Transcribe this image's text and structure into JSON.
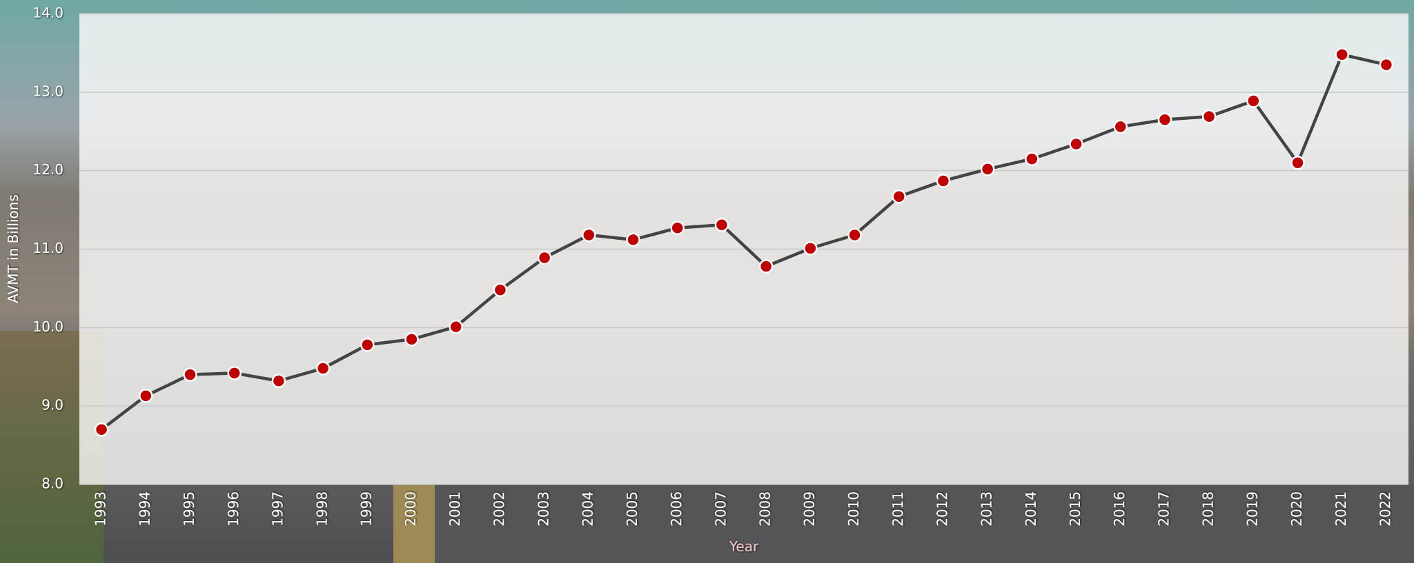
{
  "chart_data": {
    "type": "line",
    "x_label": "Year",
    "y_label": "AVMT in Billions",
    "categories": [
      "1993",
      "1994",
      "1995",
      "1996",
      "1997",
      "1998",
      "1999",
      "2000",
      "2001",
      "2002",
      "2003",
      "2004",
      "2005",
      "2006",
      "2007",
      "2008",
      "2009",
      "2010",
      "2011",
      "2012",
      "2013",
      "2014",
      "2015",
      "2016",
      "2017",
      "2018",
      "2019",
      "2020",
      "2021",
      "2022"
    ],
    "series": [
      {
        "name": "AVMT",
        "color": "#c00000",
        "line_color": "#444444",
        "values": [
          8.7,
          9.13,
          9.4,
          9.42,
          9.32,
          9.48,
          9.78,
          9.85,
          10.01,
          10.48,
          10.89,
          11.18,
          11.12,
          11.27,
          11.31,
          10.78,
          11.01,
          11.18,
          11.67,
          11.87,
          12.02,
          12.15,
          12.34,
          12.56,
          12.65,
          12.69,
          12.89,
          12.1,
          13.48,
          13.35
        ]
      }
    ],
    "ylim": [
      8,
      14
    ],
    "yticks": [
      {
        "value": 8,
        "label": "8.0"
      },
      {
        "value": 9,
        "label": "9.0"
      },
      {
        "value": 10,
        "label": "10.0"
      },
      {
        "value": 11,
        "label": "11.0"
      },
      {
        "value": 12,
        "label": "12.0"
      },
      {
        "value": 13,
        "label": "13.0"
      },
      {
        "value": 14,
        "label": "14.0"
      }
    ],
    "grid": true
  }
}
